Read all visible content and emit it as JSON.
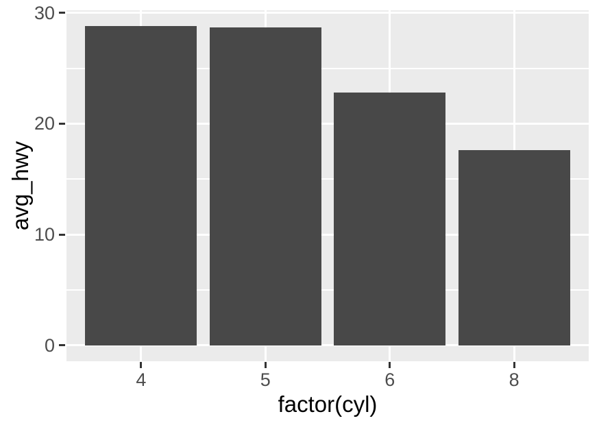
{
  "chart_data": {
    "type": "bar",
    "title": "",
    "xlabel": "factor(cyl)",
    "ylabel": "avg_hwy",
    "categories": [
      "4",
      "5",
      "6",
      "8"
    ],
    "values": [
      28.8,
      28.7,
      22.82,
      17.63
    ],
    "y_major_ticks": [
      0,
      10,
      20,
      30
    ],
    "y_minor_ticks": [
      5,
      15,
      25
    ],
    "ylim": [
      -1.44,
      30.24
    ],
    "x_domain": [
      0.4,
      4.6
    ],
    "bar_width_units": 0.9,
    "grid": "major-and-minor-horizontal, major-vertical",
    "legend": "none",
    "colors": {
      "bar_fill": "#484848",
      "panel_background": "#EBEBEB",
      "gridline": "#FFFFFF",
      "tick_label_text": "#4D4D4D",
      "axis_title_text": "#000000",
      "tick_mark": "#333333",
      "page_background": "#FFFFFF"
    }
  }
}
